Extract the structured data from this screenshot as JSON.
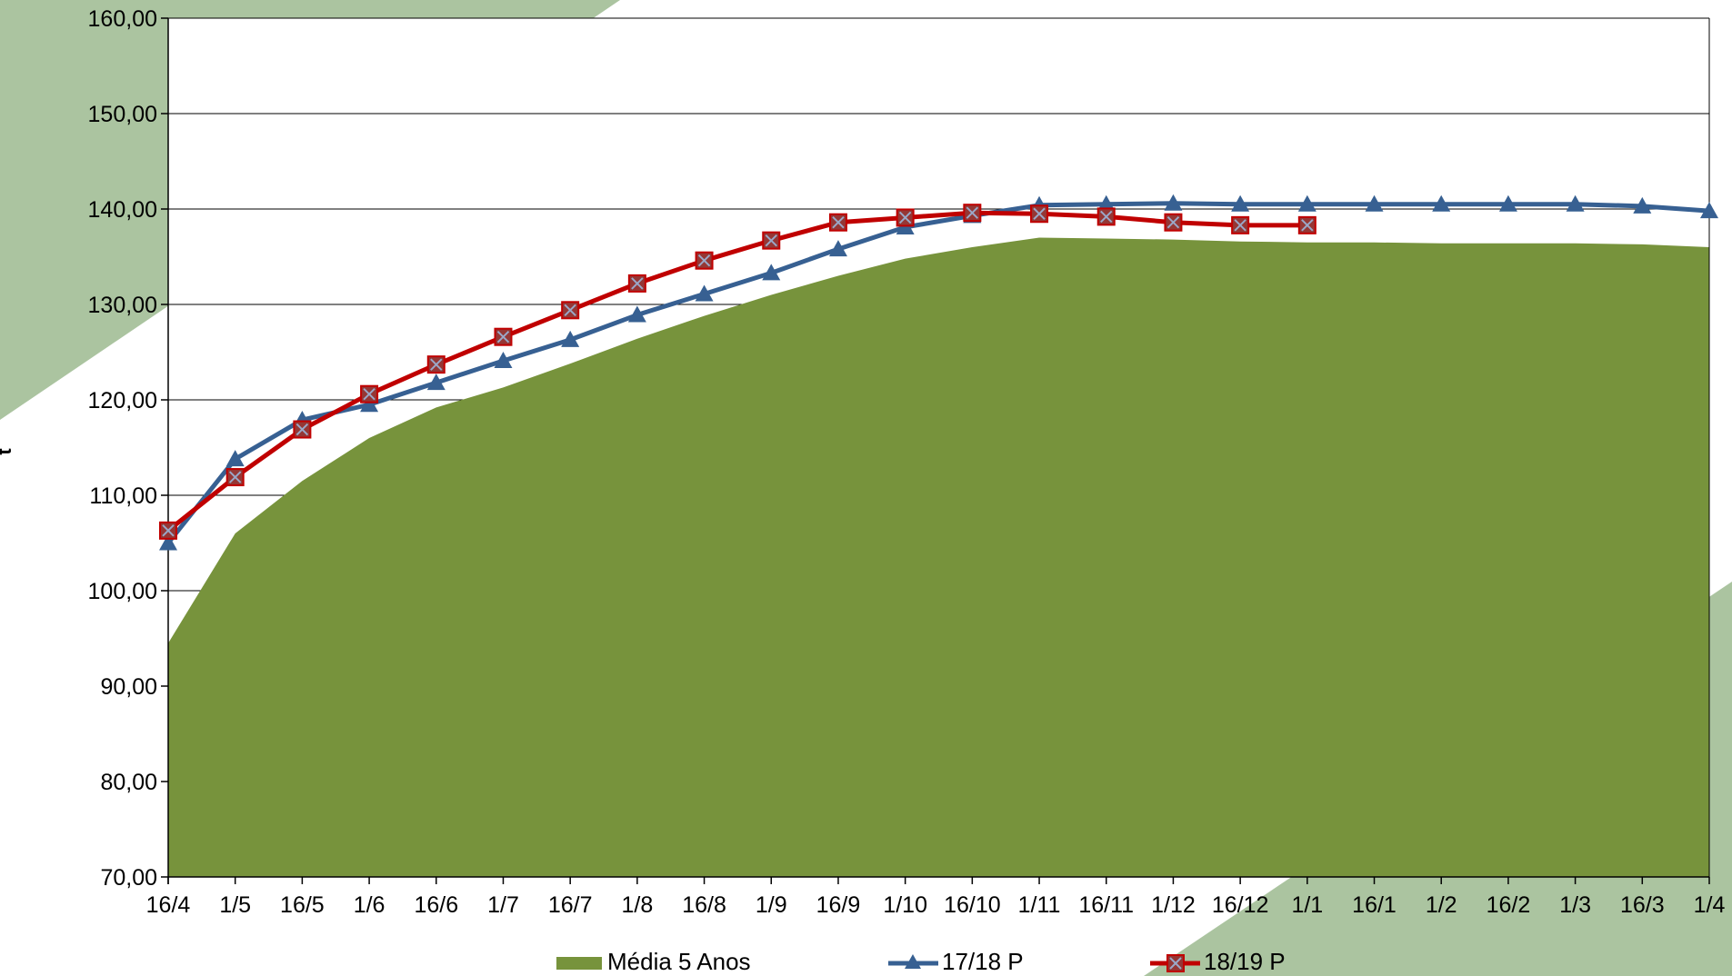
{
  "chart_data": {
    "type": "area",
    "title": "",
    "xlabel": "",
    "ylabel": "t",
    "ylim": [
      70,
      160
    ],
    "yticks": [
      "70,00",
      "80,00",
      "90,00",
      "100,00",
      "110,00",
      "120,00",
      "130,00",
      "140,00",
      "150,00",
      "160,00"
    ],
    "ytick_values": [
      70,
      80,
      90,
      100,
      110,
      120,
      130,
      140,
      150,
      160
    ],
    "categories": [
      "16/4",
      "1/5",
      "16/5",
      "1/6",
      "16/6",
      "1/7",
      "16/7",
      "1/8",
      "16/8",
      "1/9",
      "16/9",
      "1/10",
      "16/10",
      "1/11",
      "16/11",
      "1/12",
      "16/12",
      "1/1",
      "16/1",
      "1/2",
      "16/2",
      "1/3",
      "16/3",
      "1/4"
    ],
    "grid": true,
    "legend_position": "bottom",
    "series": [
      {
        "name": "Média  5 Anos",
        "kind": "area",
        "color": "#77933c",
        "values": [
          94.5,
          106,
          111.5,
          116,
          119.2,
          121.3,
          123.8,
          126.4,
          128.8,
          131,
          133,
          134.8,
          136,
          137,
          136.9,
          136.8,
          136.6,
          136.5,
          136.5,
          136.4,
          136.4,
          136.4,
          136.3,
          136
        ]
      },
      {
        "name": "17/18 P",
        "kind": "line",
        "marker": "triangle",
        "color": "#376092",
        "values": [
          105,
          113.8,
          117.9,
          119.5,
          121.8,
          124.1,
          126.3,
          128.9,
          131.1,
          133.3,
          135.8,
          138.1,
          139.3,
          140.4,
          140.5,
          140.6,
          140.5,
          140.5,
          140.5,
          140.5,
          140.5,
          140.5,
          140.3,
          139.8
        ]
      },
      {
        "name": "18/19 P",
        "kind": "line",
        "marker": "x-square",
        "color": "#c00000",
        "values": [
          106.3,
          111.9,
          116.9,
          120.6,
          123.7,
          126.6,
          129.4,
          132.2,
          134.6,
          136.7,
          138.6,
          139.1,
          139.6,
          139.5,
          139.2,
          138.6,
          138.3,
          138.3,
          null,
          null,
          null,
          null,
          null,
          null
        ]
      }
    ]
  },
  "background": {
    "shape_color": "#abc4a0"
  }
}
